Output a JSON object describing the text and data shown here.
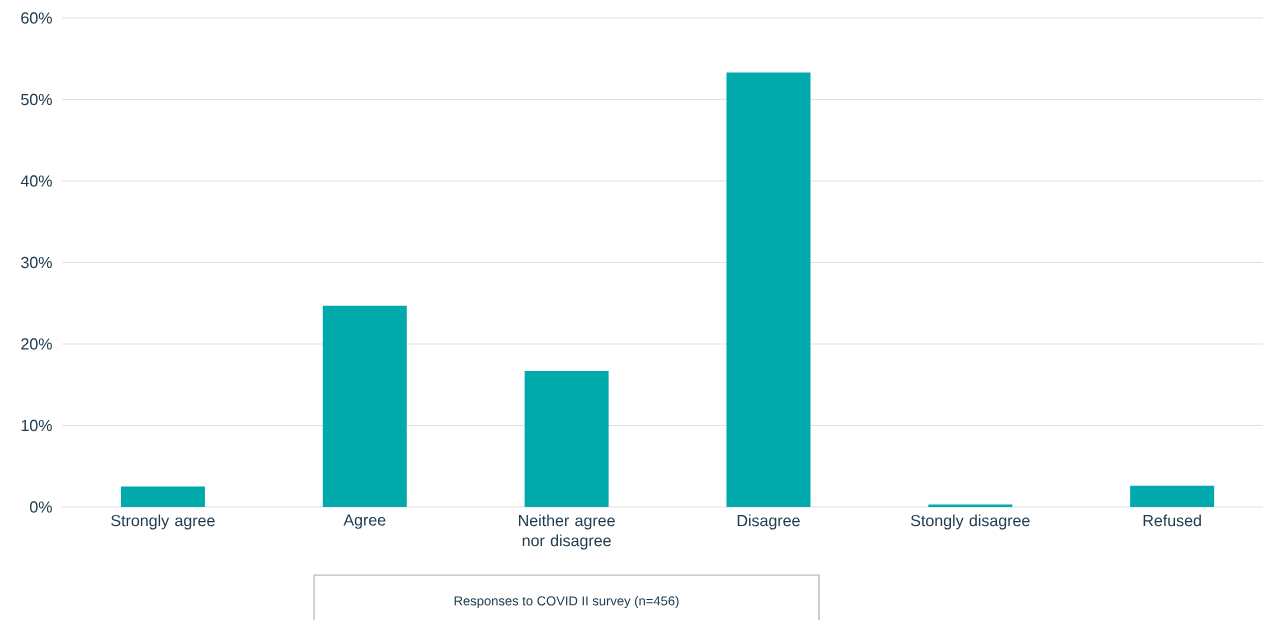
{
  "chart_data": {
    "type": "bar",
    "categories": [
      "Strongly agree",
      "Agree",
      "Neither agree nor disagree",
      "Disagree",
      "Stongly disagree",
      "Refused"
    ],
    "values": [
      2.5,
      24.7,
      16.7,
      53.3,
      0.3,
      2.6
    ],
    "color": "#00a9ac",
    "ylim": [
      0,
      60
    ],
    "yticks": [
      {
        "value": 0,
        "label": "0%"
      },
      {
        "value": 10,
        "label": "10%"
      },
      {
        "value": 20,
        "label": "20%"
      },
      {
        "value": 30,
        "label": "30%"
      },
      {
        "value": 40,
        "label": "40%"
      },
      {
        "value": 50,
        "label": "50%"
      },
      {
        "value": 60,
        "label": "60%"
      }
    ],
    "grid": "y",
    "annotations": [
      "Responses to COVID II survey (n=456)"
    ]
  }
}
